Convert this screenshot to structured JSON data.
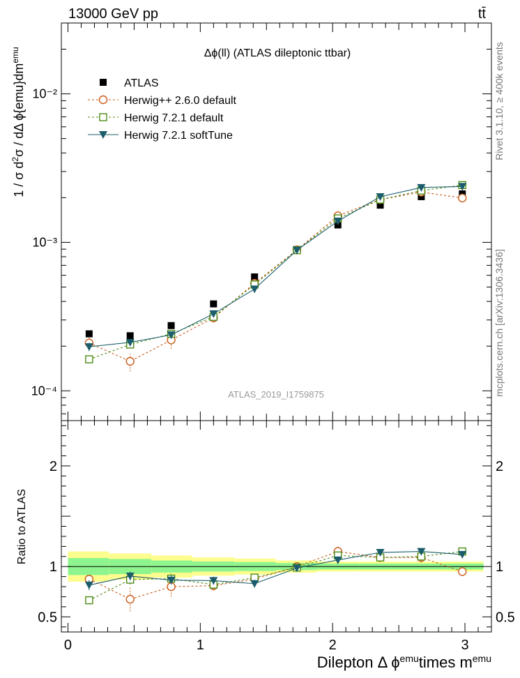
{
  "header": {
    "left": "13000 GeV pp",
    "right": "tt̄"
  },
  "side_labels": {
    "rivet": "Rivet 3.1.10, ≥ 400k events",
    "mcplots": "mcplots.cern.ch [arXiv:1306.3436]"
  },
  "chart_data": [
    {
      "type": "line",
      "panel": "main",
      "title": "Δϕ(ll) (ATLAS dileptonic ttbar)",
      "watermark": "ATLAS_2019_I1759875",
      "ylabel": "1 / σ d²σ / dΔ ϕ{emu}dm^{emu}",
      "yscale": "log",
      "ylim": [
        6.3e-05,
        0.03
      ],
      "xlim": [
        -0.05,
        3.2
      ],
      "y_ticks": [
        {
          "value": 0.0001,
          "label": "10⁻⁴"
        },
        {
          "value": 0.001,
          "label": "10⁻³"
        },
        {
          "value": 0.01,
          "label": "10⁻²"
        }
      ],
      "legend": "top-left",
      "x": [
        0.16,
        0.47,
        0.78,
        1.1,
        1.41,
        1.73,
        2.04,
        2.36,
        2.67,
        2.98
      ],
      "series": [
        {
          "name": "ATLAS",
          "style": "data",
          "color": "#000000",
          "values": [
            0.000242,
            0.000235,
            0.000275,
            0.000385,
            0.000585,
            0.000895,
            0.00131,
            0.00178,
            0.00203,
            0.00212
          ]
        },
        {
          "name": "Herwig++ 2.6.0 default",
          "style": "circle",
          "color": "#c85a17",
          "values": [
            0.00021,
            0.000158,
            0.00022,
            0.00031,
            0.00053,
            0.00089,
            0.00151,
            0.00194,
            0.00218,
            0.00199
          ],
          "err_low": [
            0.00019,
            0.000135,
            0.000192,
            0.000288,
            0.000505,
            0.000865,
            0.00146,
            0.00187,
            0.0021,
            0.00192
          ],
          "err_high": [
            0.000228,
            0.000178,
            0.000245,
            0.000332,
            0.000555,
            0.000915,
            0.00156,
            0.002,
            0.00226,
            0.00206
          ]
        },
        {
          "name": "Herwig 7.2.1 default",
          "style": "square",
          "color": "#4c8a14",
          "values": [
            0.000163,
            0.000205,
            0.000242,
            0.000315,
            0.00052,
            0.000885,
            0.00145,
            0.00194,
            0.00223,
            0.00243
          ],
          "err_low": [
            0.000153,
            0.000193,
            0.000228,
            0.000303,
            0.000505,
            0.000865,
            0.0014,
            0.00188,
            0.00216,
            0.00235
          ],
          "err_high": [
            0.000173,
            0.000217,
            0.000256,
            0.000327,
            0.000535,
            0.000905,
            0.0015,
            0.002,
            0.0023,
            0.00251
          ]
        },
        {
          "name": "Herwig 7.2.1 softTune",
          "style": "triangle",
          "color": "#1b5d6a",
          "values": [
            0.000198,
            0.000212,
            0.000238,
            0.00033,
            0.000485,
            0.000885,
            0.00139,
            0.00203,
            0.00234,
            0.00238
          ],
          "err_low": [
            0.000185,
            0.000202,
            0.000226,
            0.000316,
            0.000465,
            0.000865,
            0.00134,
            0.00197,
            0.00227,
            0.00231
          ],
          "err_high": [
            0.000211,
            0.000222,
            0.00025,
            0.000344,
            0.000505,
            0.000905,
            0.00144,
            0.00209,
            0.00241,
            0.00245
          ]
        }
      ]
    },
    {
      "type": "line",
      "panel": "ratio",
      "ylabel": "Ratio to ATLAS",
      "xlabel": "Dilepton Δ ϕ^{emu}times m^{emu}",
      "ylim": [
        0.35,
        2.45
      ],
      "xlim": [
        -0.05,
        3.2
      ],
      "y_ticks": [
        {
          "value": 0.5,
          "label": "0.5"
        },
        {
          "value": 1,
          "label": "1"
        },
        {
          "value": 2,
          "label": "2"
        }
      ],
      "x_ticks": [
        {
          "value": 0,
          "label": "0"
        },
        {
          "value": 1,
          "label": "1"
        },
        {
          "value": 2,
          "label": "2"
        },
        {
          "value": 3,
          "label": "3"
        }
      ],
      "x_edges": [
        0.0,
        0.31,
        0.63,
        0.94,
        1.26,
        1.57,
        1.88,
        2.2,
        2.51,
        2.83,
        3.14
      ],
      "band_inner": [
        0.085,
        0.075,
        0.06,
        0.05,
        0.045,
        0.035,
        0.03,
        0.03,
        0.03,
        0.03
      ],
      "band_outer": [
        0.15,
        0.13,
        0.11,
        0.09,
        0.08,
        0.06,
        0.05,
        0.05,
        0.05,
        0.05
      ],
      "band_colors": {
        "outer": "#fdfd8d",
        "inner": "#8ef58e"
      },
      "x": [
        0.16,
        0.47,
        0.78,
        1.1,
        1.41,
        1.73,
        2.04,
        2.36,
        2.67,
        2.98
      ],
      "series": [
        {
          "name": "Herwig++ 2.6.0 default",
          "style": "circle",
          "color": "#c85a17",
          "values": [
            0.875,
            0.675,
            0.8,
            0.81,
            0.875,
            1.0,
            1.15,
            1.09,
            1.09,
            0.95
          ],
          "err_low": [
            0.82,
            0.555,
            0.7,
            0.76,
            0.84,
            0.97,
            1.1,
            1.05,
            1.04,
            0.91
          ],
          "err_high": [
            0.93,
            0.79,
            0.89,
            0.86,
            0.92,
            1.03,
            1.2,
            1.13,
            1.14,
            0.99
          ]
        },
        {
          "name": "Herwig 7.2.1 default",
          "style": "square",
          "color": "#4c8a14",
          "values": [
            0.665,
            0.87,
            0.88,
            0.82,
            0.89,
            0.99,
            1.11,
            1.09,
            1.1,
            1.15
          ],
          "err_low": [
            0.625,
            0.82,
            0.83,
            0.78,
            0.86,
            0.96,
            1.07,
            1.06,
            1.07,
            1.12
          ],
          "err_high": [
            0.705,
            0.92,
            0.93,
            0.86,
            0.92,
            1.02,
            1.15,
            1.12,
            1.13,
            1.18
          ]
        },
        {
          "name": "Herwig 7.2.1 softTune",
          "style": "triangle",
          "color": "#1b5d6a",
          "values": [
            0.815,
            0.905,
            0.865,
            0.86,
            0.83,
            0.985,
            1.065,
            1.14,
            1.15,
            1.12
          ],
          "err_low": [
            0.765,
            0.86,
            0.82,
            0.82,
            0.79,
            0.96,
            1.03,
            1.11,
            1.12,
            1.09
          ],
          "err_high": [
            0.865,
            0.95,
            0.91,
            0.9,
            0.87,
            1.01,
            1.1,
            1.17,
            1.18,
            1.15
          ]
        }
      ]
    }
  ]
}
